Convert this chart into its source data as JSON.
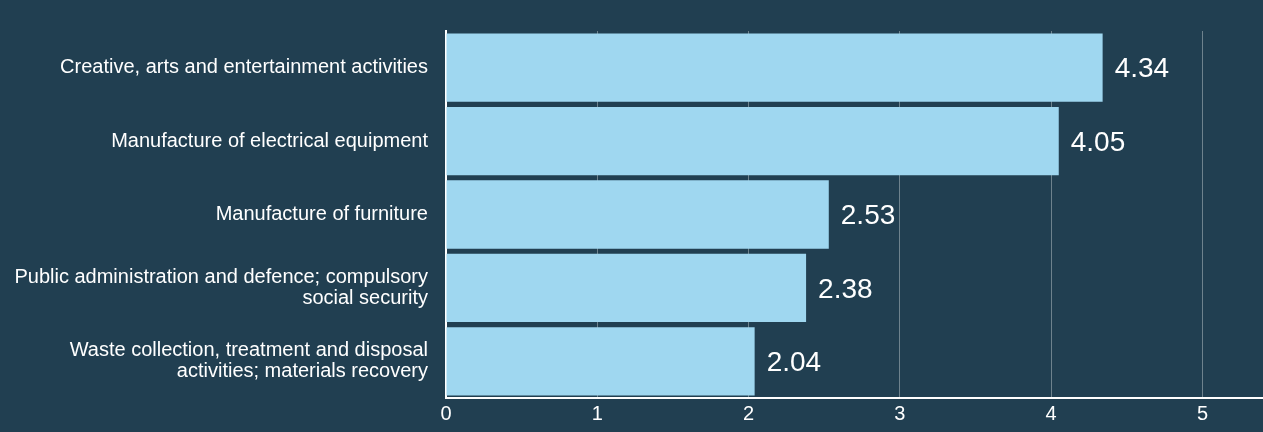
{
  "chart_data": {
    "type": "bar",
    "orientation": "horizontal",
    "categories": [
      "Creative, arts and entertainment activities",
      "Manufacture of electrical equipment",
      "Manufacture of furniture",
      "Public administration and defence; compulsory social security",
      "Waste collection, treatment and disposal activities; materials recovery"
    ],
    "values": [
      4.34,
      4.05,
      2.53,
      2.38,
      2.04
    ],
    "color": "#9fd7f0",
    "xlim": [
      0,
      5.4
    ],
    "xticks": [
      0,
      1,
      2,
      3,
      4,
      5
    ],
    "grid": "x",
    "legend": false,
    "data_labels": true
  }
}
